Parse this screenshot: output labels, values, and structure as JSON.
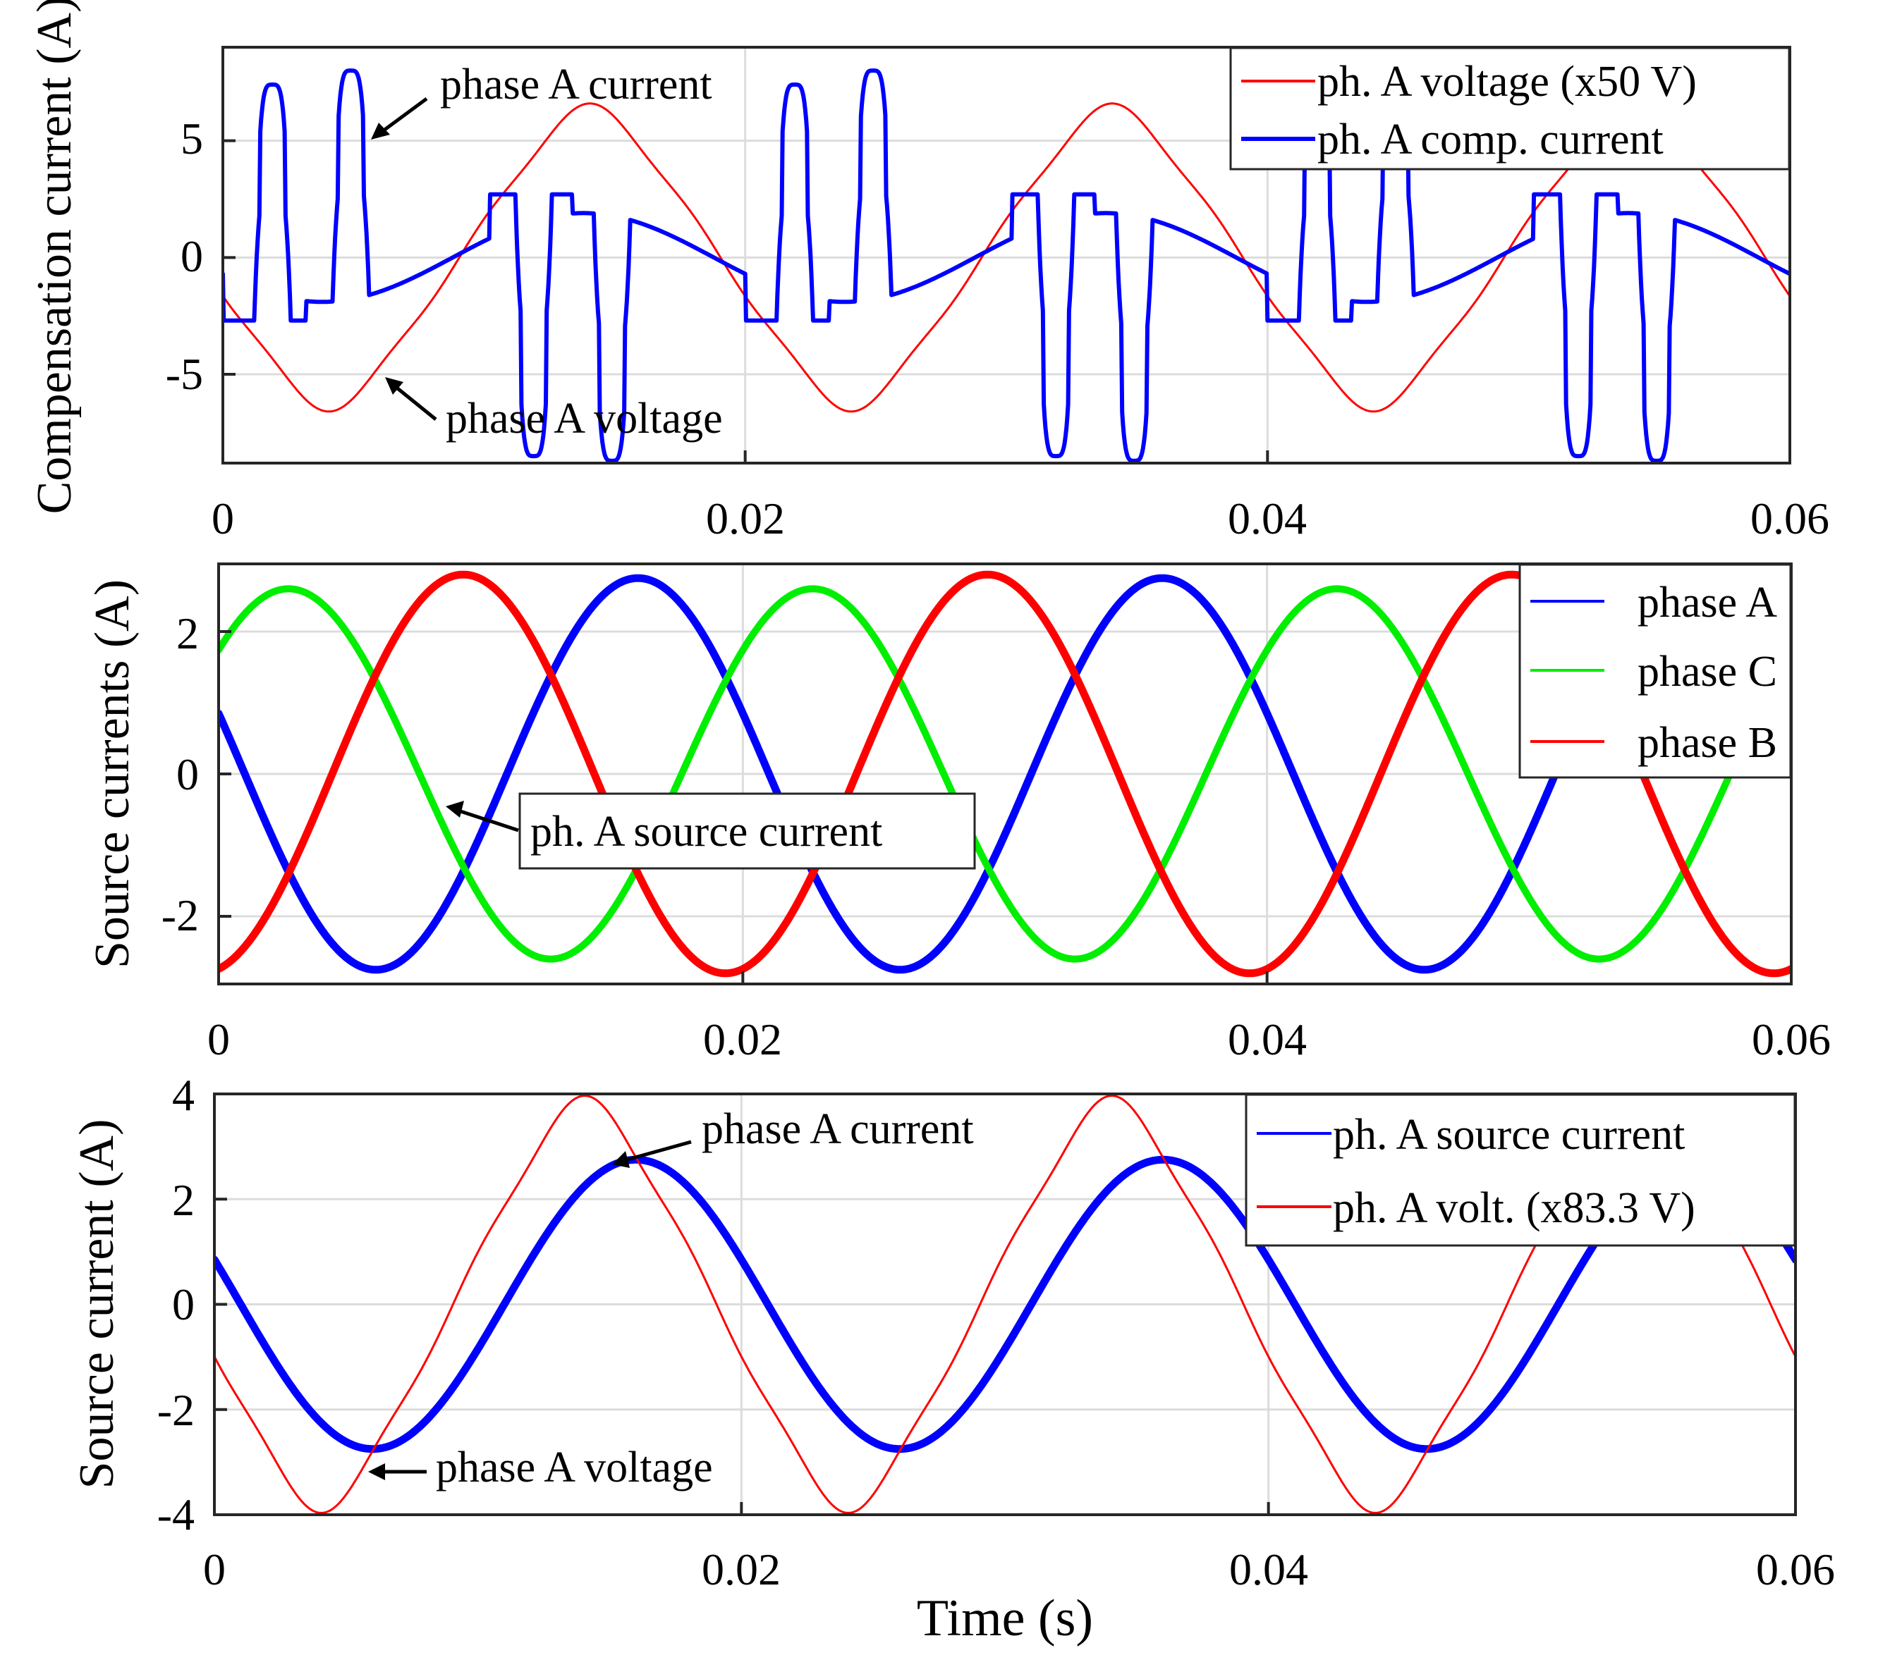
{
  "chart_data": [
    {
      "type": "line",
      "ylabel": "Compensation current (A)",
      "xlabel": "",
      "xlim": [
        0,
        0.06
      ],
      "ylim": [
        -8.8,
        9.0
      ],
      "x_ticks": [
        0,
        0.02,
        0.04,
        0.06
      ],
      "x_tick_labels": [
        "0",
        "0.02",
        "0.04",
        "0.06"
      ],
      "y_ticks": [
        5,
        0,
        -5
      ],
      "y_tick_labels": [
        "5",
        "0",
        "-5"
      ],
      "grid": true,
      "legend_position": "top-right",
      "series": [
        {
          "name": "ph. A voltage (x50 V)",
          "color": "#ff0000",
          "kind": "voltage",
          "amplitude": 6.4,
          "phase_deg": -17,
          "width": 3
        },
        {
          "name": "ph. A comp. current",
          "color": "#0000ff",
          "kind": "compensation",
          "width": 6
        }
      ],
      "annotations": [
        {
          "text": "phase A current",
          "target_x": 0.0057,
          "target_y": 5.0
        },
        {
          "text": "phase A voltage",
          "target_x": 0.0064,
          "target_y": -5.0
        }
      ]
    },
    {
      "type": "line",
      "ylabel": "Source currents (A)",
      "xlabel": "",
      "xlim": [
        0,
        0.06
      ],
      "ylim": [
        -2.95,
        2.95
      ],
      "x_ticks": [
        0,
        0.02,
        0.04,
        0.06
      ],
      "x_tick_labels": [
        "0",
        "0.02",
        "0.04",
        "0.06"
      ],
      "y_ticks": [
        2,
        0,
        -2
      ],
      "y_tick_labels": [
        "2",
        "0",
        "-2"
      ],
      "grid": true,
      "legend_position": "top-right",
      "series": [
        {
          "name": "phase A",
          "color": "#0000ff",
          "amplitude": 2.75,
          "phase_deg": -18,
          "width": 11
        },
        {
          "name": "phase C",
          "color": "#00ee00",
          "amplitude": 2.6,
          "phase_deg": 222,
          "width": 10
        },
        {
          "name": "phase B",
          "color": "#ff0000",
          "amplitude": 2.8,
          "phase_deg": 102,
          "width": 11
        }
      ],
      "annotations": [
        {
          "text": "ph. A source current",
          "target_x": 0.0087,
          "target_y": -0.4,
          "boxed": true
        }
      ]
    },
    {
      "type": "line",
      "ylabel": "Source current (A)",
      "xlabel": "Time (s)",
      "xlim": [
        0,
        0.06
      ],
      "ylim": [
        -4,
        4
      ],
      "x_ticks": [
        0,
        0.02,
        0.04,
        0.06
      ],
      "x_tick_labels": [
        "0",
        "0.02",
        "0.04",
        "0.06"
      ],
      "y_ticks": [
        4,
        2,
        0,
        -2,
        -4
      ],
      "y_tick_labels": [
        "4",
        "2",
        "0",
        "-2",
        "-4"
      ],
      "grid": true,
      "legend_position": "top-right",
      "series": [
        {
          "name": "ph. A source current",
          "color": "#0000ff",
          "amplitude": 2.75,
          "phase_deg": -18,
          "width": 11
        },
        {
          "name": "ph. A volt. (x83.3 V)",
          "color": "#ff0000",
          "amplitude": 3.85,
          "phase_deg": -17,
          "width": 3
        }
      ],
      "annotations": [
        {
          "text": "phase A current",
          "target_x": 0.0148,
          "target_y": 2.75
        },
        {
          "text": "phase A voltage",
          "target_x": 0.0058,
          "target_y": -3.45
        }
      ]
    }
  ]
}
